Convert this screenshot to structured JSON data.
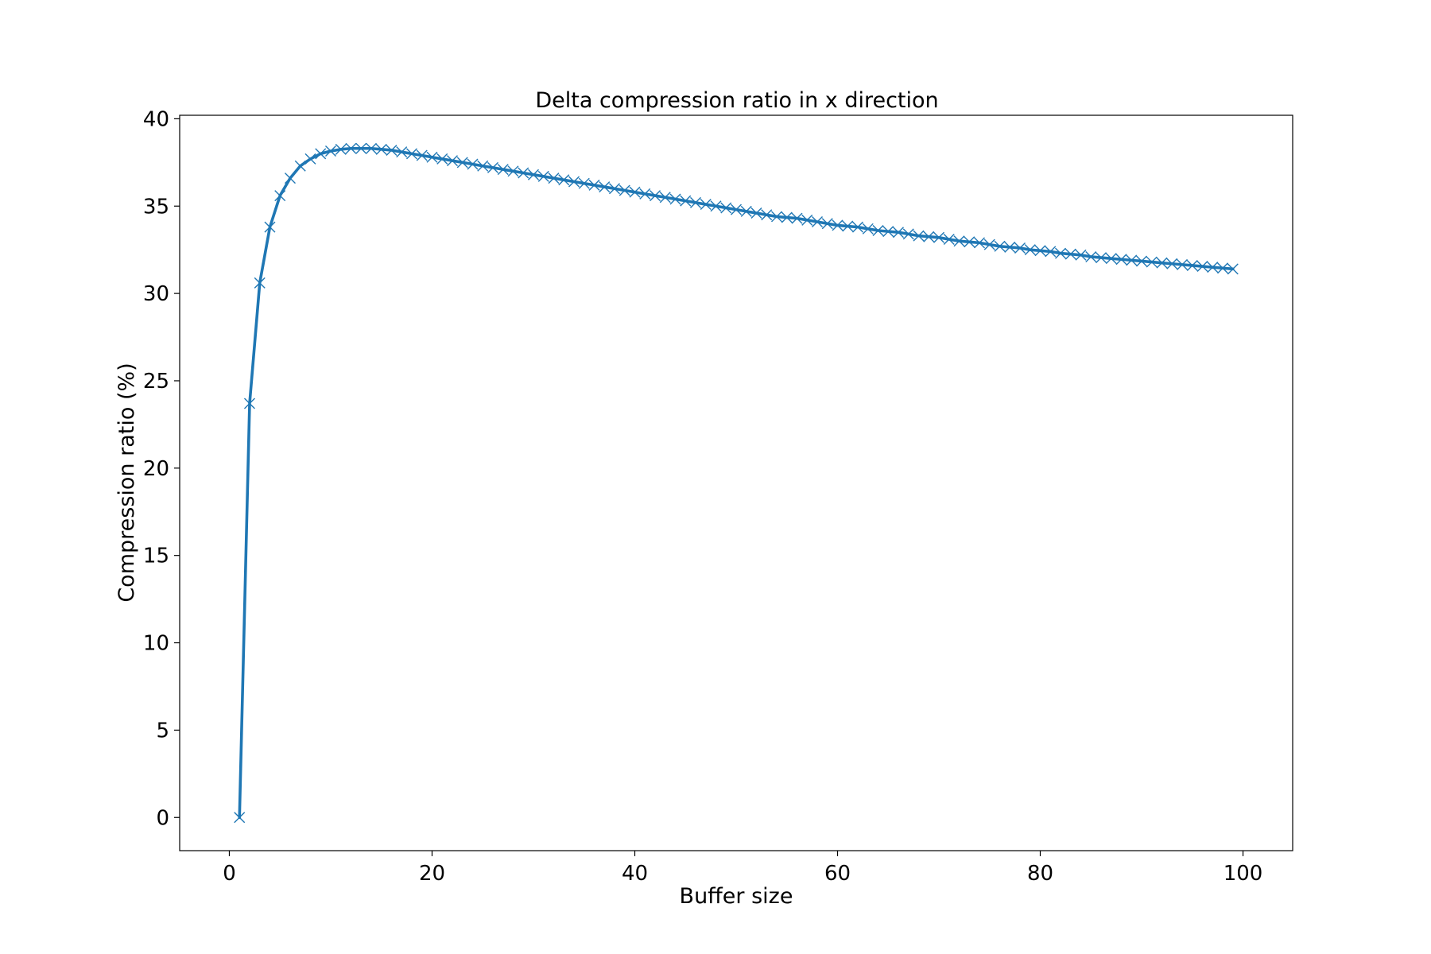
{
  "chart_data": {
    "type": "line",
    "title": "Delta compression ratio in x direction",
    "xlabel": "Buffer size",
    "ylabel": "Compression ratio (%)",
    "xlim": [
      -4.9,
      104.9
    ],
    "ylim": [
      -1.9,
      40.2
    ],
    "xticks": [
      0,
      20,
      40,
      60,
      80,
      100
    ],
    "yticks": [
      0,
      5,
      10,
      15,
      20,
      25,
      30,
      35,
      40
    ],
    "grid": false,
    "legend": "none",
    "marker": "x",
    "color": "#1f77b4",
    "series": [
      {
        "x": [
          1,
          2,
          3,
          4,
          5,
          6,
          7,
          8,
          9,
          10,
          11,
          12,
          13,
          14,
          15,
          16,
          17,
          18,
          19,
          20,
          21,
          22,
          23,
          24,
          25,
          26,
          27,
          28,
          29,
          30,
          31,
          32,
          33,
          34,
          35,
          36,
          37,
          38,
          39,
          40,
          41,
          42,
          43,
          44,
          45,
          46,
          47,
          48,
          49,
          50,
          51,
          52,
          53,
          54,
          55,
          56,
          57,
          58,
          59,
          60,
          61,
          62,
          63,
          64,
          65,
          66,
          67,
          68,
          69,
          70,
          71,
          72,
          73,
          74,
          75,
          76,
          77,
          78,
          79,
          80,
          81,
          82,
          83,
          84,
          85,
          86,
          87,
          88,
          89,
          90,
          91,
          92,
          93,
          94,
          95,
          96,
          97,
          98,
          99
        ],
        "values": [
          0.0,
          23.7,
          30.6,
          33.8,
          35.6,
          36.6,
          37.3,
          37.7,
          38.0,
          38.15,
          38.25,
          38.3,
          38.3,
          38.3,
          38.25,
          38.2,
          38.1,
          38.0,
          37.9,
          37.8,
          37.7,
          37.6,
          37.5,
          37.4,
          37.3,
          37.2,
          37.1,
          37.0,
          36.9,
          36.8,
          36.7,
          36.6,
          36.5,
          36.4,
          36.3,
          36.2,
          36.1,
          36.0,
          35.9,
          35.8,
          35.7,
          35.6,
          35.5,
          35.4,
          35.3,
          35.2,
          35.1,
          35.0,
          34.9,
          34.8,
          34.7,
          34.6,
          34.5,
          34.4,
          34.35,
          34.3,
          34.2,
          34.1,
          34.0,
          33.9,
          33.85,
          33.8,
          33.7,
          33.6,
          33.55,
          33.5,
          33.4,
          33.3,
          33.25,
          33.2,
          33.1,
          33.0,
          32.95,
          32.9,
          32.8,
          32.7,
          32.65,
          32.6,
          32.5,
          32.45,
          32.4,
          32.3,
          32.25,
          32.2,
          32.1,
          32.05,
          32.0,
          31.95,
          31.9,
          31.85,
          31.8,
          31.75,
          31.7,
          31.65,
          31.6,
          31.55,
          31.5,
          31.45,
          31.4
        ]
      }
    ]
  }
}
